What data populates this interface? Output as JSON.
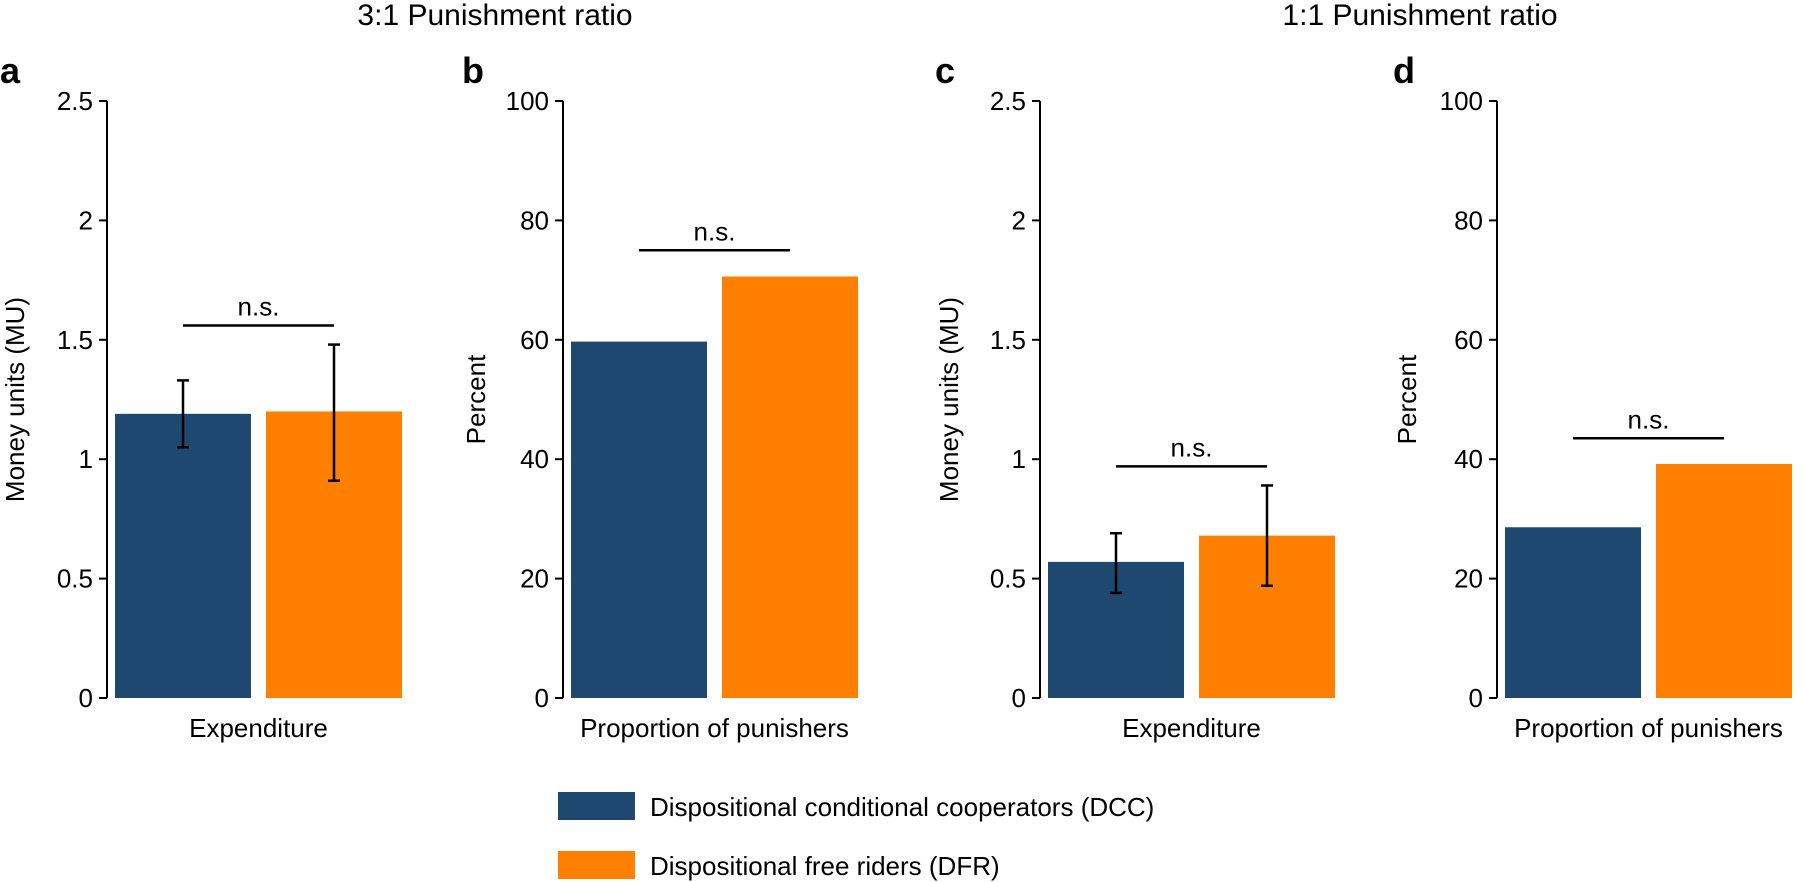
{
  "group_titles": [
    "3:1 Punishment ratio",
    "1:1 Punishment ratio"
  ],
  "legend": [
    {
      "label": "Dispositional conditional cooperators (DCC)",
      "color": "#1f4870"
    },
    {
      "label": "Dispositional free riders (DFR)",
      "color": "#ff8000"
    }
  ],
  "chart_data": [
    {
      "type": "bar",
      "panel": "a",
      "group": "3:1 Punishment ratio",
      "categories": [
        "Expenditure"
      ],
      "xlabel": "Expenditure",
      "ylabel": "Money units (MU)",
      "ylim": [
        0,
        2.5
      ],
      "yticks": [
        0,
        0.5,
        1,
        1.5,
        2,
        2.5
      ],
      "ytick_labels": [
        "0",
        "0.5",
        "1",
        "1.5",
        "2",
        "2.5"
      ],
      "series": [
        {
          "name": "Dispositional conditional cooperators (DCC)",
          "values": [
            1.19
          ],
          "error_low": [
            1.05
          ],
          "error_high": [
            1.33
          ],
          "color": "#1f4870"
        },
        {
          "name": "Dispositional free riders (DFR)",
          "values": [
            1.2
          ],
          "error_low": [
            0.91
          ],
          "error_high": [
            1.48
          ],
          "color": "#ff8000"
        }
      ],
      "significance": {
        "label": "n.s.",
        "level": 1.56
      }
    },
    {
      "type": "bar",
      "panel": "b",
      "group": "3:1 Punishment ratio",
      "categories": [
        "Proportion of punishers"
      ],
      "xlabel": "Proportion of punishers",
      "ylabel": "Percent",
      "ylim": [
        0,
        100
      ],
      "yticks": [
        0,
        20,
        40,
        60,
        80,
        100
      ],
      "ytick_labels": [
        "0",
        "20",
        "40",
        "60",
        "80",
        "100"
      ],
      "series": [
        {
          "name": "Dispositional conditional cooperators (DCC)",
          "values": [
            59.7
          ],
          "color": "#1f4870"
        },
        {
          "name": "Dispositional free riders (DFR)",
          "values": [
            70.6
          ],
          "color": "#ff8000"
        }
      ],
      "significance": {
        "label": "n.s.",
        "level": 75
      }
    },
    {
      "type": "bar",
      "panel": "c",
      "group": "1:1 Punishment ratio",
      "categories": [
        "Expenditure"
      ],
      "xlabel": "Expenditure",
      "ylabel": "Money units (MU)",
      "ylim": [
        0,
        2.5
      ],
      "yticks": [
        0,
        0.5,
        1,
        1.5,
        2,
        2.5
      ],
      "ytick_labels": [
        "0",
        "0.5",
        "1",
        "1.5",
        "2",
        "2.5"
      ],
      "series": [
        {
          "name": "Dispositional conditional cooperators (DCC)",
          "values": [
            0.57
          ],
          "error_low": [
            0.44
          ],
          "error_high": [
            0.69
          ],
          "color": "#1f4870"
        },
        {
          "name": "Dispositional free riders (DFR)",
          "values": [
            0.68
          ],
          "error_low": [
            0.47
          ],
          "error_high": [
            0.89
          ],
          "color": "#ff8000"
        }
      ],
      "significance": {
        "label": "n.s.",
        "level": 0.97
      }
    },
    {
      "type": "bar",
      "panel": "d",
      "group": "1:1 Punishment ratio",
      "categories": [
        "Proportion of punishers"
      ],
      "xlabel": "Proportion of punishers",
      "ylabel": "Percent",
      "ylim": [
        0,
        100
      ],
      "yticks": [
        0,
        20,
        40,
        60,
        80,
        100
      ],
      "ytick_labels": [
        "0",
        "20",
        "40",
        "60",
        "80",
        "100"
      ],
      "series": [
        {
          "name": "Dispositional conditional cooperators (DCC)",
          "values": [
            28.6
          ],
          "color": "#1f4870"
        },
        {
          "name": "Dispositional free riders (DFR)",
          "values": [
            39.2
          ],
          "color": "#ff8000"
        }
      ],
      "significance": {
        "label": "n.s.",
        "level": 43.5
      }
    }
  ]
}
